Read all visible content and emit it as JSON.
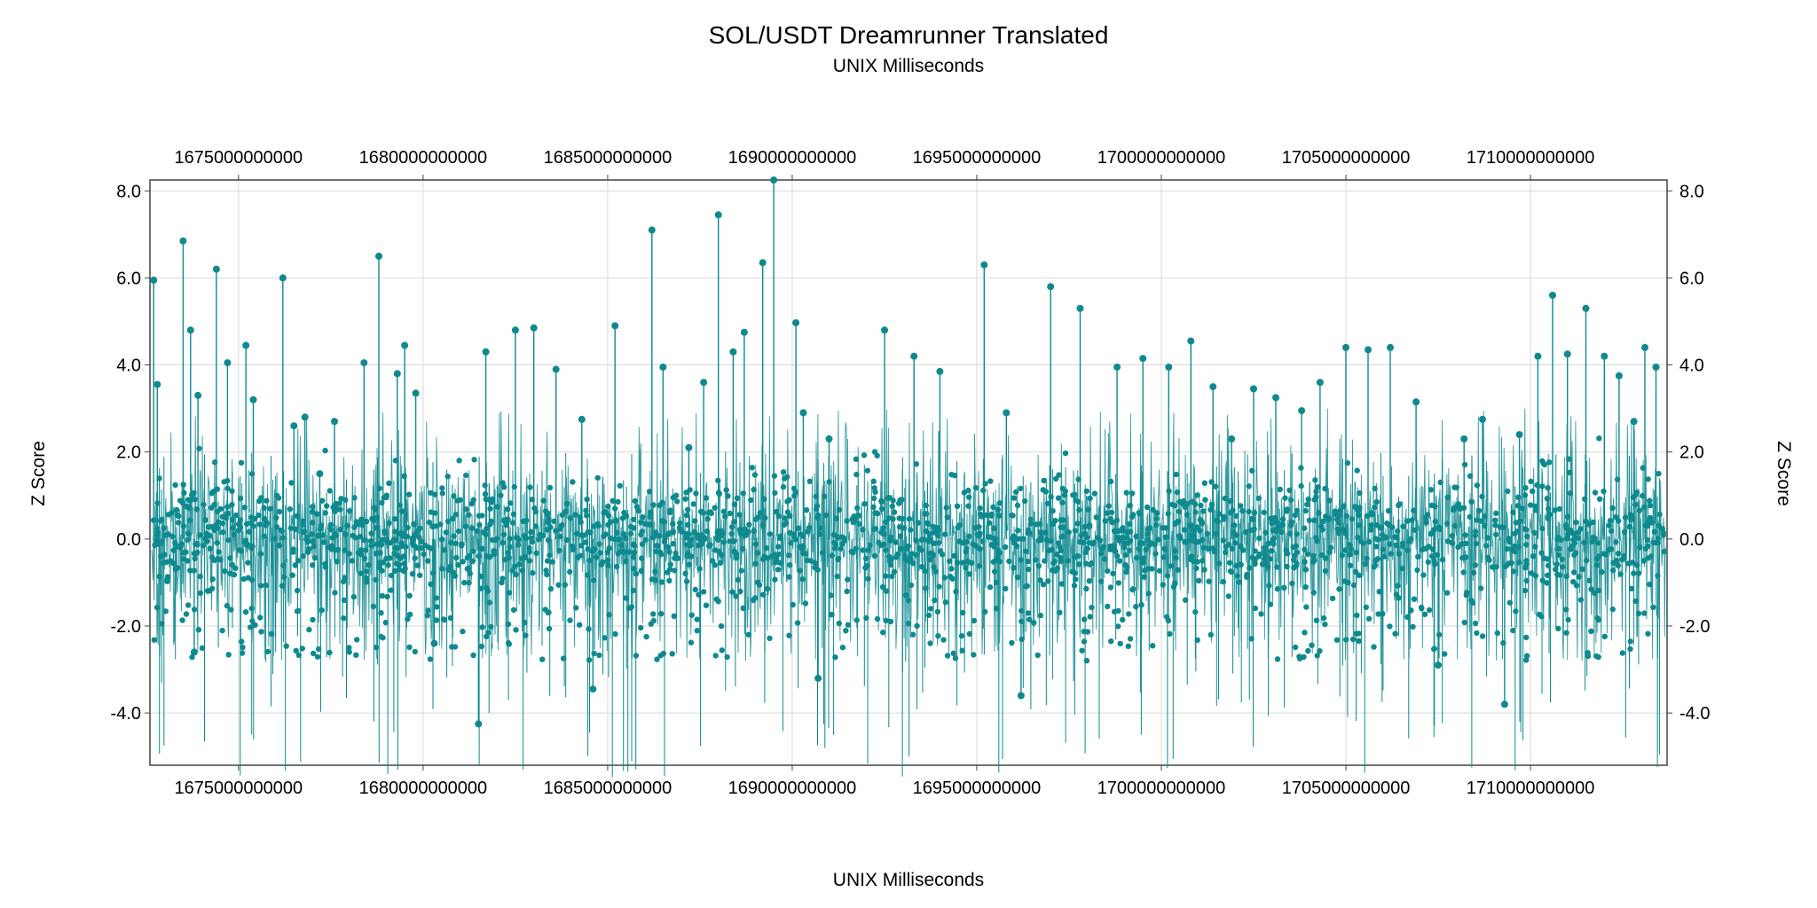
{
  "chart_data": {
    "type": "scatter",
    "title": "SOL/USDT Dreamrunner Translated",
    "xlabel_top": "UNIX Milliseconds",
    "xlabel_bottom": "UNIX Milliseconds",
    "ylabel_left": "Z Score",
    "ylabel_right": "Z Score",
    "xlim": [
      1672600000000,
      1713700000000
    ],
    "ylim": [
      -5.2,
      8.25
    ],
    "x_ticks": [
      1675000000000,
      1680000000000,
      1685000000000,
      1690000000000,
      1695000000000,
      1700000000000,
      1705000000000,
      1710000000000
    ],
    "x_tick_labels": [
      "1675000000000",
      "1680000000000",
      "1685000000000",
      "1690000000000",
      "1695000000000",
      "1700000000000",
      "1705000000000",
      "1710000000000"
    ],
    "y_ticks": [
      8,
      6,
      4,
      2,
      0,
      -2,
      -4
    ],
    "y_tick_labels": [
      "8.0",
      "6.0",
      "4.0",
      "2.0",
      "0.0",
      "-2.0",
      "-4.0"
    ],
    "grid": true,
    "series_color": "#0e8a8f",
    "series": [
      {
        "x": [
          1672700000000,
          1672800000000,
          1673500000000,
          1673700000000,
          1673800000000,
          1673900000000,
          1674400000000,
          1674700000000,
          1675200000000,
          1675400000000,
          1676200000000,
          1676500000000,
          1676800000000,
          1677200000000,
          1677600000000,
          1678400000000,
          1678800000000,
          1679300000000,
          1679500000000,
          1679800000000,
          1680300000000,
          1681500000000,
          1681700000000,
          1682500000000,
          1683000000000,
          1683600000000,
          1684300000000,
          1684600000000,
          1685200000000,
          1686200000000,
          1686500000000,
          1687200000000,
          1687600000000,
          1688000000000,
          1688400000000,
          1688700000000,
          1689200000000,
          1689500000000,
          1690100000000,
          1690300000000,
          1690700000000,
          1691000000000,
          1692500000000,
          1693300000000,
          1694000000000,
          1695200000000,
          1695800000000,
          1696200000000,
          1697000000000,
          1697800000000,
          1698800000000,
          1699500000000,
          1700200000000,
          1700800000000,
          1701400000000,
          1701900000000,
          1702500000000,
          1703100000000,
          1703800000000,
          1704300000000,
          1705000000000,
          1705600000000,
          1706200000000,
          1706900000000,
          1707500000000,
          1708200000000,
          1708700000000,
          1709300000000,
          1709700000000,
          1710200000000,
          1710600000000,
          1711000000000,
          1711500000000,
          1712000000000,
          1712400000000,
          1712800000000,
          1713100000000,
          1713400000000
        ],
        "y": [
          5.95,
          3.55,
          6.85,
          4.8,
          -2.6,
          3.3,
          6.2,
          4.05,
          4.45,
          3.2,
          6.0,
          2.6,
          2.8,
          1.5,
          2.7,
          4.05,
          6.5,
          3.8,
          4.45,
          3.35,
          -2.4,
          -4.25,
          4.3,
          4.8,
          4.85,
          3.9,
          2.75,
          -3.45,
          4.9,
          7.1,
          3.95,
          2.1,
          3.6,
          7.45,
          4.3,
          4.75,
          6.35,
          8.25,
          4.97,
          2.9,
          -3.2,
          2.3,
          4.8,
          4.2,
          3.85,
          6.3,
          2.9,
          -3.6,
          5.8,
          5.3,
          3.95,
          4.15,
          3.95,
          4.55,
          3.5,
          2.3,
          3.45,
          3.25,
          2.95,
          3.6,
          4.4,
          4.35,
          4.4,
          3.15,
          -2.9,
          2.3,
          2.75,
          -3.8,
          2.4,
          4.2,
          5.6,
          4.25,
          5.3,
          4.2,
          3.75,
          2.7,
          4.4,
          3.95
        ],
        "note": "ok"
      }
    ]
  }
}
